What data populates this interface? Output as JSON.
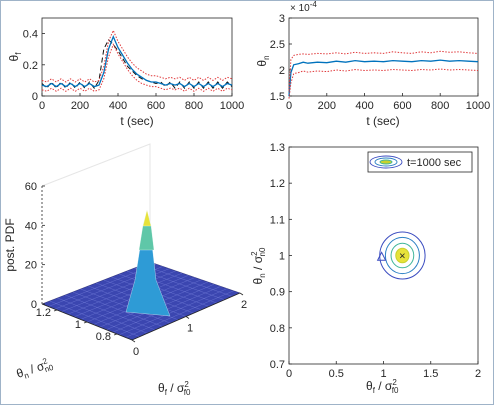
{
  "chart_data": [
    {
      "id": "theta_f_timeseries",
      "type": "line",
      "xlabel": "t (sec)",
      "ylabel": "θ_f",
      "xlim": [
        0,
        1000
      ],
      "ylim": [
        0,
        0.5
      ],
      "xticks": [
        0,
        200,
        400,
        600,
        800,
        1000
      ],
      "yticks": [
        0,
        0.2,
        0.4
      ],
      "ytick_labels": [
        "0",
        "0.2",
        "0.4"
      ],
      "grid": false,
      "x": [
        0,
        25,
        50,
        75,
        100,
        125,
        150,
        175,
        200,
        225,
        250,
        275,
        300,
        325,
        350,
        375,
        400,
        425,
        450,
        475,
        500,
        525,
        550,
        575,
        600,
        625,
        650,
        675,
        700,
        725,
        750,
        775,
        800,
        825,
        850,
        875,
        900,
        925,
        950,
        975,
        1000
      ],
      "series": [
        {
          "color": "#111111",
          "style": "dashed",
          "values": [
            0.08,
            0.05,
            0.09,
            0.05,
            0.09,
            0.05,
            0.09,
            0.05,
            0.09,
            0.05,
            0.09,
            0.05,
            0.1,
            0.3,
            0.36,
            0.33,
            0.29,
            0.24,
            0.19,
            0.16,
            0.13,
            0.11,
            0.1,
            0.09,
            0.08,
            0.09,
            0.06,
            0.09,
            0.05,
            0.09,
            0.05,
            0.09,
            0.05,
            0.09,
            0.05,
            0.09,
            0.05,
            0.09,
            0.05,
            0.09,
            0.06
          ]
        },
        {
          "color": "#0072bd",
          "style": "solid",
          "values": [
            0.07,
            0.06,
            0.08,
            0.06,
            0.08,
            0.06,
            0.08,
            0.06,
            0.08,
            0.06,
            0.08,
            0.06,
            0.07,
            0.15,
            0.3,
            0.38,
            0.31,
            0.26,
            0.21,
            0.17,
            0.14,
            0.12,
            0.1,
            0.09,
            0.09,
            0.08,
            0.07,
            0.08,
            0.07,
            0.08,
            0.06,
            0.08,
            0.06,
            0.08,
            0.06,
            0.08,
            0.06,
            0.08,
            0.06,
            0.08,
            0.07
          ]
        },
        {
          "color": "#e0393b",
          "style": "dotted",
          "values": [
            0.1,
            0.09,
            0.11,
            0.09,
            0.11,
            0.09,
            0.11,
            0.09,
            0.11,
            0.09,
            0.11,
            0.09,
            0.1,
            0.19,
            0.35,
            0.42,
            0.35,
            0.3,
            0.25,
            0.21,
            0.18,
            0.16,
            0.14,
            0.13,
            0.13,
            0.12,
            0.11,
            0.12,
            0.11,
            0.12,
            0.1,
            0.12,
            0.1,
            0.12,
            0.1,
            0.12,
            0.1,
            0.12,
            0.1,
            0.12,
            0.11
          ]
        },
        {
          "color": "#e0393b",
          "style": "dotted",
          "values": [
            0.04,
            0.03,
            0.05,
            0.03,
            0.05,
            0.03,
            0.05,
            0.03,
            0.05,
            0.03,
            0.05,
            0.03,
            0.04,
            0.11,
            0.25,
            0.33,
            0.27,
            0.22,
            0.17,
            0.13,
            0.1,
            0.08,
            0.07,
            0.06,
            0.06,
            0.05,
            0.04,
            0.05,
            0.04,
            0.05,
            0.03,
            0.05,
            0.03,
            0.05,
            0.03,
            0.05,
            0.03,
            0.05,
            0.03,
            0.05,
            0.04
          ]
        }
      ]
    },
    {
      "id": "theta_n_timeseries",
      "type": "line",
      "xlabel": "t (sec)",
      "ylabel": "θ_n",
      "exponent_label": "× 10^-4",
      "xlim": [
        0,
        1000
      ],
      "ylim": [
        1.5,
        3
      ],
      "xticks": [
        0,
        200,
        400,
        600,
        800,
        1000
      ],
      "yticks": [
        1.5,
        2,
        2.5,
        3
      ],
      "ytick_labels": [
        "1.5",
        "2",
        "2.5",
        "3"
      ],
      "grid": false,
      "x": [
        0,
        10,
        25,
        50,
        75,
        100,
        150,
        200,
        250,
        300,
        350,
        400,
        450,
        500,
        550,
        600,
        650,
        700,
        750,
        800,
        850,
        900,
        950,
        1000
      ],
      "series": [
        {
          "color": "#0072bd",
          "style": "solid",
          "values": [
            1.5,
            1.95,
            2.1,
            2.12,
            2.15,
            2.13,
            2.15,
            2.14,
            2.17,
            2.15,
            2.18,
            2.16,
            2.17,
            2.16,
            2.18,
            2.17,
            2.16,
            2.18,
            2.17,
            2.19,
            2.17,
            2.18,
            2.17,
            2.16
          ]
        },
        {
          "color": "#e0393b",
          "style": "dotted",
          "values": [
            1.6,
            2.2,
            2.28,
            2.3,
            2.31,
            2.3,
            2.32,
            2.31,
            2.33,
            2.31,
            2.34,
            2.32,
            2.33,
            2.32,
            2.35,
            2.33,
            2.32,
            2.35,
            2.33,
            2.36,
            2.34,
            2.35,
            2.33,
            2.32
          ]
        },
        {
          "color": "#e0393b",
          "style": "dotted",
          "values": [
            1.45,
            1.75,
            1.93,
            1.95,
            1.98,
            1.96,
            1.98,
            1.97,
            2.0,
            1.98,
            2.01,
            1.99,
            2.0,
            1.99,
            2.01,
            2.0,
            1.99,
            2.01,
            2.0,
            2.02,
            2.0,
            2.01,
            2.0,
            1.99
          ]
        }
      ]
    },
    {
      "id": "posterior_surface",
      "type": "surface",
      "zlabel": "post. PDF",
      "xlabel": "θ_f / σ²_f0",
      "ylabel": "θ_n / σ²_n0",
      "zlim": [
        0,
        60
      ],
      "zticks": [
        0,
        20,
        40,
        60
      ],
      "xticks": [
        0,
        1,
        2
      ],
      "yticks": [
        0.8,
        1,
        1.2
      ],
      "ytick_labels": [
        "0.8",
        "1",
        "1.2"
      ],
      "peak": {
        "x": 1.2,
        "y": 1.0,
        "z": 46
      }
    },
    {
      "id": "posterior_contour",
      "type": "contour",
      "xlabel": "θ_f / σ²_f0",
      "ylabel": "θ_n / σ²_n0",
      "xlim": [
        0,
        2
      ],
      "ylim": [
        0.7,
        1.3
      ],
      "xticks": [
        0,
        0.5,
        1,
        1.5,
        2
      ],
      "xtick_labels": [
        "0",
        "0.5",
        "1",
        "1.5",
        "2"
      ],
      "yticks": [
        0.7,
        0.8,
        0.9,
        1,
        1.1,
        1.2,
        1.3
      ],
      "ytick_labels": [
        "0.7",
        "0.8",
        "0.9",
        "1",
        "1.1",
        "1.2",
        "1.3"
      ],
      "center": {
        "x": 1.2,
        "y": 1.0
      },
      "contour_half_widths": [
        {
          "dx": 0.24,
          "dy": 0.065,
          "color": "#3b4cc0"
        },
        {
          "dx": 0.18,
          "dy": 0.05,
          "color": "#2a7fc4"
        },
        {
          "dx": 0.12,
          "dy": 0.034,
          "color": "#3fb59a"
        },
        {
          "dx": 0.07,
          "dy": 0.02,
          "color": "#c8d22e"
        }
      ],
      "markers": [
        {
          "label": "×",
          "x": 1.2,
          "y": 1.0,
          "color": "#000000"
        },
        {
          "label": "triangle",
          "x": 0.98,
          "y": 0.995,
          "color": "#3b4cc0"
        }
      ],
      "legend": {
        "label": "t=1000 sec",
        "position": "top-right"
      }
    }
  ]
}
